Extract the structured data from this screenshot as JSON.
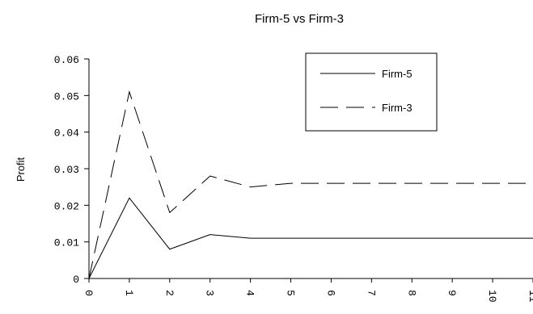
{
  "chart_data": {
    "type": "line",
    "title": "Firm-5 vs Firm-3",
    "xlabel": "",
    "ylabel": "Profit",
    "x": [
      0,
      1,
      2,
      3,
      4,
      5,
      6,
      7,
      8,
      9,
      10,
      11
    ],
    "x_tick_labels": [
      "0",
      "1",
      "2",
      "3",
      "4",
      "5",
      "6",
      "7",
      "8",
      "9",
      "10",
      "11"
    ],
    "ylim": [
      0,
      0.06
    ],
    "y_ticks": [
      0,
      0.01,
      0.02,
      0.03,
      0.04,
      0.05,
      0.06
    ],
    "y_tick_labels": [
      "0",
      "0.01",
      "0.02",
      "0.03",
      "0.04",
      "0.05",
      "0.06"
    ],
    "grid": false,
    "legend": "top-right",
    "series": [
      {
        "name": "Firm-5",
        "style": "solid",
        "color": "#000000",
        "values": [
          0,
          0.022,
          0.008,
          0.012,
          0.011,
          0.011,
          0.011,
          0.011,
          0.011,
          0.011,
          0.011,
          0.011
        ]
      },
      {
        "name": "Firm-3",
        "style": "dashed",
        "color": "#000000",
        "values": [
          0,
          0.051,
          0.018,
          0.028,
          0.025,
          0.026,
          0.026,
          0.026,
          0.026,
          0.026,
          0.026,
          0.026
        ]
      }
    ]
  }
}
